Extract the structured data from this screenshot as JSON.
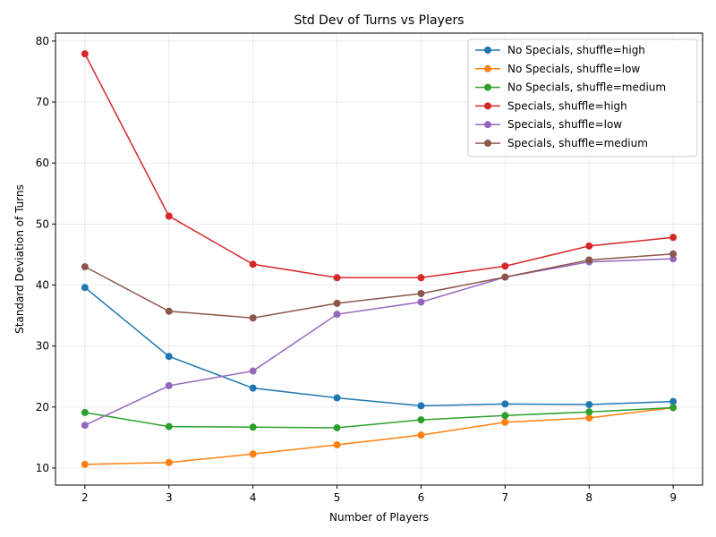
{
  "chart_data": {
    "type": "line",
    "title": "Std Dev of Turns vs Players",
    "xlabel": "Number of Players",
    "ylabel": "Standard Deviation of Turns",
    "x": [
      2,
      3,
      4,
      5,
      6,
      7,
      8,
      9
    ],
    "xlim": [
      1.65,
      9.35
    ],
    "ylim": [
      7.2,
      81.3
    ],
    "xticks": [
      2,
      3,
      4,
      5,
      6,
      7,
      8,
      9
    ],
    "yticks": [
      10,
      20,
      30,
      40,
      50,
      60,
      70,
      80
    ],
    "grid": true,
    "legend_position": "top-right",
    "marker": "circle",
    "series": [
      {
        "name": "No Specials, shuffle=high",
        "color": "#1f77b4",
        "values": [
          39.6,
          28.3,
          23.1,
          21.5,
          20.2,
          20.5,
          20.4,
          20.9
        ]
      },
      {
        "name": "No Specials, shuffle=low",
        "color": "#ff7f0e",
        "values": [
          10.6,
          10.9,
          12.3,
          13.8,
          15.4,
          17.5,
          18.2,
          19.9
        ]
      },
      {
        "name": "No Specials, shuffle=medium",
        "color": "#2ca02c",
        "values": [
          19.1,
          16.8,
          16.7,
          16.6,
          17.9,
          18.6,
          19.2,
          19.9
        ]
      },
      {
        "name": "Specials, shuffle=high",
        "color": "#d62728",
        "values": [
          77.9,
          51.3,
          43.4,
          41.2,
          41.2,
          43.1,
          46.4,
          47.8
        ]
      },
      {
        "name": "Specials, shuffle=low",
        "color": "#9467bd",
        "values": [
          17.0,
          23.5,
          25.9,
          35.2,
          37.2,
          41.3,
          43.8,
          44.3
        ]
      },
      {
        "name": "Specials, shuffle=medium",
        "color": "#8c564b",
        "values": [
          43.0,
          35.7,
          34.6,
          37.0,
          38.6,
          41.3,
          44.1,
          45.1
        ]
      }
    ]
  }
}
